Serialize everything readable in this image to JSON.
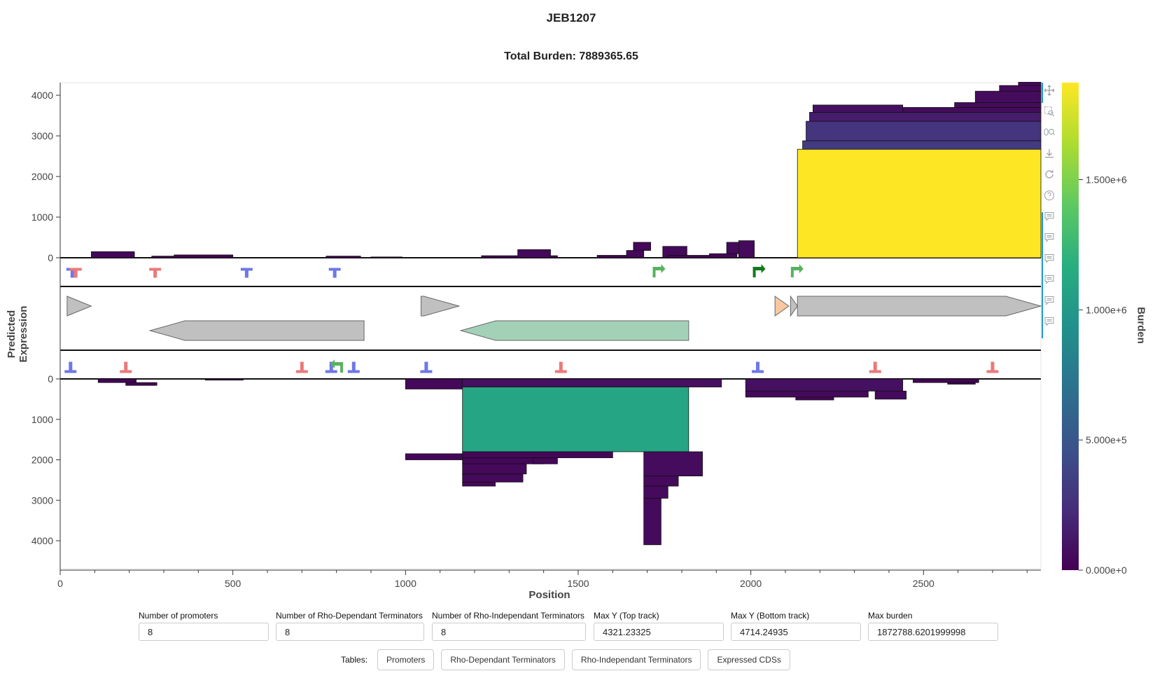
{
  "title": "JEB1207",
  "subtitle": "Total Burden: 7889365.65",
  "ylabel": "Predicted Expression",
  "xlabel": "Position",
  "colorbar": {
    "title": "Burden",
    "ticks": [
      "0.000e+0",
      "5.000e+5",
      "1.000e+6",
      "1.500e+6"
    ],
    "range": [
      0,
      1872788.6202
    ],
    "palette": "viridis"
  },
  "toolbar": {
    "tools": [
      "pan-icon",
      "box-zoom-icon",
      "wheel-zoom-icon",
      "save-icon",
      "reset-icon",
      "help-icon",
      "hover-icon",
      "hover-icon",
      "hover-icon",
      "hover-icon",
      "hover-icon",
      "hover-icon"
    ]
  },
  "controls": {
    "promoters_label": "Number of promoters",
    "promoters_value": "8",
    "rho_dep_label": "Number of Rho-Dependant Terminators",
    "rho_dep_value": "8",
    "rho_indep_label": "Number of Rho-Independant Terminators",
    "rho_indep_value": "8",
    "maxy_top_label": "Max Y (Top track)",
    "maxy_top_value": "4321.23325",
    "maxy_bottom_label": "Max Y (Bottom track)",
    "maxy_bottom_value": "4714.24935",
    "max_burden_label": "Max burden",
    "max_burden_value": "1872788.6201999998"
  },
  "tables": {
    "label": "Tables:",
    "buttons": [
      "Promoters",
      "Rho-Dependant Terminators",
      "Rho-Independant Terminators",
      "Expressed CDSs"
    ]
  },
  "chart_data": {
    "type": "bar",
    "xlim": [
      0,
      2840
    ],
    "x_ticks": [
      0,
      500,
      1000,
      1500,
      2000,
      2500
    ],
    "top_track": {
      "ylim": [
        0,
        4321.23
      ],
      "y_ticks": [
        0,
        1000,
        2000,
        3000,
        4000
      ],
      "bars": [
        {
          "x0": 90,
          "x1": 215,
          "base": 0,
          "top": 150,
          "burden": 30000
        },
        {
          "x0": 265,
          "x1": 330,
          "base": 0,
          "top": 40,
          "burden": 15000
        },
        {
          "x0": 330,
          "x1": 500,
          "base": 0,
          "top": 70,
          "burden": 15000
        },
        {
          "x0": 770,
          "x1": 870,
          "base": 0,
          "top": 40,
          "burden": 15000
        },
        {
          "x0": 900,
          "x1": 990,
          "base": 0,
          "top": 20,
          "burden": 10000
        },
        {
          "x0": 1220,
          "x1": 1440,
          "base": 0,
          "top": 50,
          "burden": 15000
        },
        {
          "x0": 1325,
          "x1": 1420,
          "base": 0,
          "top": 200,
          "burden": 40000
        },
        {
          "x0": 1555,
          "x1": 1680,
          "base": 0,
          "top": 60,
          "burden": 15000
        },
        {
          "x0": 1640,
          "x1": 1690,
          "base": 0,
          "top": 180,
          "burden": 30000
        },
        {
          "x0": 1660,
          "x1": 1710,
          "base": 180,
          "top": 380,
          "burden": 30000
        },
        {
          "x0": 1745,
          "x1": 1815,
          "base": 0,
          "top": 280,
          "burden": 40000
        },
        {
          "x0": 1760,
          "x1": 1900,
          "base": 0,
          "top": 60,
          "burden": 15000
        },
        {
          "x0": 1880,
          "x1": 1960,
          "base": 0,
          "top": 100,
          "burden": 20000
        },
        {
          "x0": 1930,
          "x1": 2000,
          "base": 100,
          "top": 380,
          "burden": 40000
        },
        {
          "x0": 1965,
          "x1": 2010,
          "base": 0,
          "top": 420,
          "burden": 50000
        },
        {
          "x0": 2135,
          "x1": 2840,
          "base": 0,
          "top": 2670,
          "burden": 1872788
        },
        {
          "x0": 2150,
          "x1": 2840,
          "base": 2670,
          "top": 2880,
          "burden": 320000
        },
        {
          "x0": 2160,
          "x1": 2840,
          "base": 2880,
          "top": 3360,
          "burden": 280000
        },
        {
          "x0": 2170,
          "x1": 2840,
          "base": 3360,
          "top": 3580,
          "burden": 150000
        },
        {
          "x0": 2180,
          "x1": 2440,
          "base": 3580,
          "top": 3760,
          "burden": 80000
        },
        {
          "x0": 2440,
          "x1": 2840,
          "base": 3580,
          "top": 3700,
          "burden": 60000
        },
        {
          "x0": 2590,
          "x1": 2840,
          "base": 3700,
          "top": 3820,
          "burden": 60000
        },
        {
          "x0": 2650,
          "x1": 2840,
          "base": 3820,
          "top": 4100,
          "burden": 60000
        },
        {
          "x0": 2720,
          "x1": 2840,
          "base": 4100,
          "top": 4240,
          "burden": 50000
        },
        {
          "x0": 2775,
          "x1": 2840,
          "base": 4240,
          "top": 4321,
          "burden": 50000
        }
      ]
    },
    "bottom_track": {
      "ylim": [
        0,
        4714.25
      ],
      "y_ticks": [
        0,
        1000,
        2000,
        3000,
        4000
      ],
      "bars": [
        {
          "x0": 110,
          "x1": 220,
          "base": 0,
          "top": 90,
          "burden": 20000
        },
        {
          "x0": 190,
          "x1": 280,
          "base": 90,
          "top": 160,
          "burden": 20000
        },
        {
          "x0": 420,
          "x1": 530,
          "base": 0,
          "top": 30,
          "burden": 10000
        },
        {
          "x0": 1000,
          "x1": 1170,
          "base": 0,
          "top": 250,
          "burden": 40000
        },
        {
          "x0": 1165,
          "x1": 1915,
          "base": 0,
          "top": 200,
          "burden": 80000
        },
        {
          "x0": 1165,
          "x1": 1820,
          "base": 200,
          "top": 1800,
          "burden": 1100000
        },
        {
          "x0": 1000,
          "x1": 1165,
          "base": 1850,
          "top": 2000,
          "burden": 30000
        },
        {
          "x0": 1165,
          "x1": 1600,
          "base": 1800,
          "top": 1950,
          "burden": 30000
        },
        {
          "x0": 1165,
          "x1": 1400,
          "base": 1950,
          "top": 2100,
          "burden": 30000
        },
        {
          "x0": 1165,
          "x1": 1350,
          "base": 2100,
          "top": 2350,
          "burden": 40000
        },
        {
          "x0": 1165,
          "x1": 1340,
          "base": 2350,
          "top": 2550,
          "burden": 40000
        },
        {
          "x0": 1165,
          "x1": 1260,
          "base": 2550,
          "top": 2650,
          "burden": 30000
        },
        {
          "x0": 1370,
          "x1": 1440,
          "base": 1950,
          "top": 2100,
          "burden": 30000
        },
        {
          "x0": 1690,
          "x1": 1860,
          "base": 1800,
          "top": 2400,
          "burden": 60000
        },
        {
          "x0": 1690,
          "x1": 1790,
          "base": 2400,
          "top": 2650,
          "burden": 50000
        },
        {
          "x0": 1690,
          "x1": 1760,
          "base": 2650,
          "top": 2950,
          "burden": 50000
        },
        {
          "x0": 1690,
          "x1": 1740,
          "base": 2950,
          "top": 4100,
          "burden": 50000
        },
        {
          "x0": 1985,
          "x1": 2440,
          "base": 0,
          "top": 300,
          "burden": 80000
        },
        {
          "x0": 1985,
          "x1": 2340,
          "base": 300,
          "top": 450,
          "burden": 40000
        },
        {
          "x0": 2130,
          "x1": 2240,
          "base": 450,
          "top": 520,
          "burden": 30000
        },
        {
          "x0": 2360,
          "x1": 2450,
          "base": 300,
          "top": 500,
          "burden": 50000
        },
        {
          "x0": 2470,
          "x1": 2660,
          "base": 0,
          "top": 90,
          "burden": 20000
        },
        {
          "x0": 2570,
          "x1": 2650,
          "base": 90,
          "top": 130,
          "burden": 20000
        }
      ]
    },
    "top_parts": [
      {
        "x": 35,
        "kind": "rho-independent"
      },
      {
        "x": 45,
        "kind": "rho-dependent"
      },
      {
        "x": 275,
        "kind": "rho-dependent"
      },
      {
        "x": 540,
        "kind": "rho-independent"
      },
      {
        "x": 795,
        "kind": "rho-independent"
      },
      {
        "x": 1720,
        "kind": "promoter"
      },
      {
        "x": 2010,
        "kind": "promoter-strong"
      },
      {
        "x": 2120,
        "kind": "promoter"
      }
    ],
    "bottom_parts": [
      {
        "x": 30,
        "kind": "rho-independent"
      },
      {
        "x": 190,
        "kind": "rho-dependent"
      },
      {
        "x": 700,
        "kind": "rho-dependent"
      },
      {
        "x": 785,
        "kind": "rho-independent"
      },
      {
        "x": 815,
        "kind": "promoter"
      },
      {
        "x": 850,
        "kind": "rho-independent"
      },
      {
        "x": 1060,
        "kind": "rho-independent"
      },
      {
        "x": 1450,
        "kind": "rho-dependent"
      },
      {
        "x": 2020,
        "kind": "rho-independent"
      },
      {
        "x": 2360,
        "kind": "rho-dependent"
      },
      {
        "x": 2700,
        "kind": "rho-dependent"
      }
    ],
    "genes": [
      {
        "start": 20,
        "end": 90,
        "strand": "+",
        "color": "#c0c0c0"
      },
      {
        "start": 260,
        "end": 880,
        "strand": "-",
        "color": "#c0c0c0"
      },
      {
        "start": 1045,
        "end": 1155,
        "strand": "+",
        "color": "#c0c0c0"
      },
      {
        "start": 1160,
        "end": 1820,
        "strand": "-",
        "color": "#a3d1b8"
      },
      {
        "start": 2070,
        "end": 2110,
        "strand": "+",
        "color": "#f9c8a0"
      },
      {
        "start": 2115,
        "end": 2135,
        "strand": "+",
        "color": "#c0c0c0"
      },
      {
        "start": 2135,
        "end": 2840,
        "strand": "+",
        "color": "#c0c0c0"
      }
    ]
  }
}
